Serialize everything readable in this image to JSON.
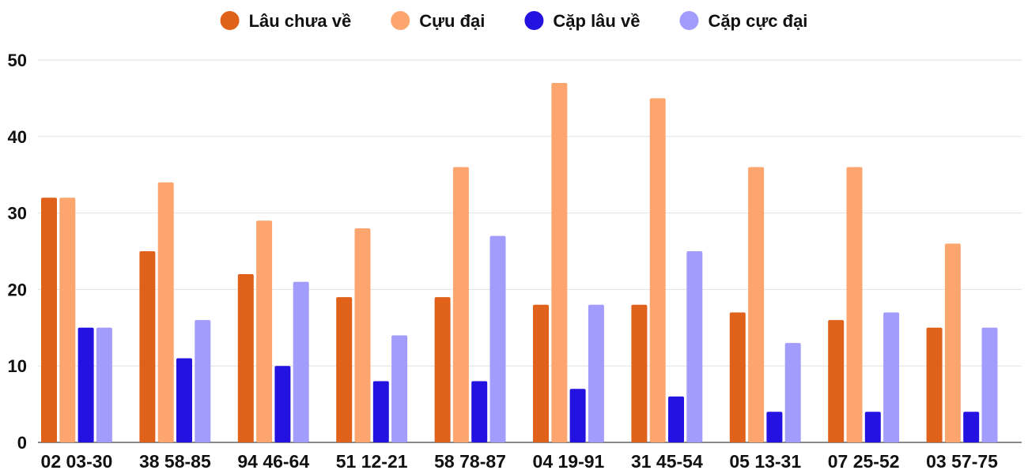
{
  "chart_data": {
    "type": "bar",
    "title": "",
    "xlabel": "",
    "ylabel": "",
    "ylim": [
      0,
      50
    ],
    "yticks": [
      0,
      10,
      20,
      30,
      40,
      50
    ],
    "grid": true,
    "legend_position": "top-center",
    "categories": [
      "02 03-30",
      "38 58-85",
      "94 46-64",
      "51 12-21",
      "58 78-87",
      "04 19-91",
      "31 45-54",
      "05 13-31",
      "07 25-52",
      "03 57-75"
    ],
    "series": [
      {
        "name": "Lâu chưa về",
        "color": "#e0621a",
        "values": [
          32,
          25,
          22,
          19,
          19,
          18,
          18,
          17,
          16,
          15
        ]
      },
      {
        "name": "Cựu đại",
        "color": "#fca56e",
        "values": [
          32,
          34,
          29,
          28,
          36,
          47,
          45,
          36,
          36,
          26
        ]
      },
      {
        "name": "Cặp lâu về",
        "color": "#2412e0",
        "values": [
          15,
          11,
          10,
          8,
          8,
          7,
          6,
          4,
          4,
          4
        ]
      },
      {
        "name": "Cặp cực đại",
        "color": "#a29cfc",
        "values": [
          15,
          16,
          21,
          14,
          27,
          18,
          25,
          13,
          17,
          15
        ]
      }
    ]
  }
}
